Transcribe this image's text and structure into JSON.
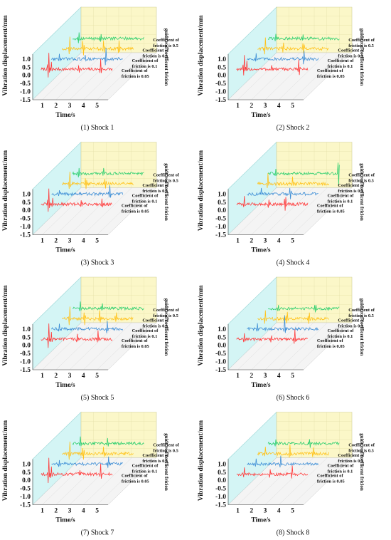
{
  "chart_data": [
    {
      "type": "line",
      "caption": "(1) Shock 1",
      "xlabel": "Time/s",
      "ylabel": "Vibration displacement/mm",
      "zlabel": "guide rod coefficent fricion",
      "xticks": [
        1,
        2,
        3,
        4,
        5
      ],
      "yticks": [
        -1.5,
        -1.0,
        -0.5,
        0.0,
        0.5,
        1.0
      ],
      "xlim": [
        0.3,
        5.8
      ],
      "ylim": [
        -1.5,
        1.3
      ],
      "series_labels": [
        [
          "Coefficient of",
          "friction is 0.05"
        ],
        [
          "Coefficient of",
          "friction is 0.1"
        ],
        [
          "Coefficient of",
          "friction is 0.3"
        ],
        [
          "Coefficient of",
          "friction is 0.5"
        ]
      ],
      "series": [
        {
          "color": "#ff3b3b",
          "peaks": [
            [
              1.0,
              1.1
            ],
            [
              1.2,
              0.4
            ],
            [
              4.8,
              0.55
            ],
            [
              3.2,
              0.3
            ]
          ]
        },
        {
          "color": "#3f8fd6",
          "peaks": [
            [
              4.4,
              0.7
            ],
            [
              1.0,
              0.3
            ],
            [
              2.9,
              0.2
            ]
          ]
        },
        {
          "color": "#ffc21a",
          "peaks": [
            [
              1.0,
              0.9
            ],
            [
              2.0,
              0.6
            ],
            [
              3.5,
              0.5
            ],
            [
              4.6,
              0.6
            ]
          ]
        },
        {
          "color": "#2ecf6f",
          "peaks": [
            [
              0.9,
              0.5
            ],
            [
              2.5,
              0.35
            ]
          ]
        }
      ]
    },
    {
      "type": "line",
      "caption": "(2) Shock 2",
      "xlabel": "Time/s",
      "ylabel": "Vibration displacement/mm",
      "zlabel": "guide rod coefficent fricion",
      "xticks": [
        1,
        2,
        3,
        4,
        5
      ],
      "yticks": [
        -1.5,
        -1.0,
        -0.5,
        0.0,
        0.5,
        1.0
      ],
      "xlim": [
        0.3,
        5.8
      ],
      "ylim": [
        -1.5,
        1.3
      ],
      "series_labels": [
        [
          "Coefficient of",
          "friction is 0.05"
        ],
        [
          "Coefficient of",
          "friction is 0.1"
        ],
        [
          "Coefficient of",
          "friction is 0.3"
        ],
        [
          "Coefficient of",
          "friction is 0.5"
        ]
      ],
      "series": [
        {
          "color": "#ff3b3b",
          "peaks": [
            [
              1.0,
              1.0
            ],
            [
              1.2,
              0.5
            ],
            [
              5.0,
              0.7
            ],
            [
              3.0,
              0.25
            ]
          ]
        },
        {
          "color": "#3f8fd6",
          "peaks": [
            [
              4.6,
              0.6
            ],
            [
              1.1,
              0.3
            ]
          ]
        },
        {
          "color": "#ffc21a",
          "peaks": [
            [
              1.0,
              0.7
            ],
            [
              2.3,
              0.5
            ],
            [
              3.8,
              0.45
            ]
          ]
        },
        {
          "color": "#2ecf6f",
          "peaks": [
            [
              1.0,
              0.4
            ],
            [
              3.0,
              0.3
            ]
          ]
        }
      ]
    },
    {
      "type": "line",
      "caption": "(3) Shock 3",
      "xlabel": "Time/s",
      "ylabel": "Vibration displacement/mm",
      "zlabel": "guide rod coefficent fricion",
      "xticks": [
        1,
        2,
        3,
        4,
        5
      ],
      "yticks": [
        -1.5,
        -1.0,
        -0.5,
        0.0,
        0.5,
        1.0
      ],
      "xlim": [
        0.3,
        5.8
      ],
      "ylim": [
        -1.5,
        1.3
      ],
      "series_labels": [
        [
          "Coefficient of",
          "friction is 0.05"
        ],
        [
          "Coefficient of",
          "friction is 0.1"
        ],
        [
          "Coefficient of",
          "friction is 0.3"
        ],
        [
          "Coefficient of",
          "friction is 0.5"
        ]
      ],
      "series": [
        {
          "color": "#ff3b3b",
          "peaks": [
            [
              1.0,
              0.95
            ],
            [
              1.3,
              0.4
            ],
            [
              3.4,
              0.35
            ],
            [
              4.9,
              0.4
            ]
          ]
        },
        {
          "color": "#3f8fd6",
          "peaks": [
            [
              4.7,
              0.55
            ],
            [
              1.0,
              0.3
            ]
          ]
        },
        {
          "color": "#ffc21a",
          "peaks": [
            [
              1.0,
              0.8
            ],
            [
              2.2,
              0.5
            ],
            [
              3.6,
              0.4
            ]
          ]
        },
        {
          "color": "#2ecf6f",
          "peaks": [
            [
              0.9,
              0.45
            ],
            [
              2.7,
              0.3
            ]
          ]
        }
      ]
    },
    {
      "type": "line",
      "caption": "(4) Shock 4",
      "xlabel": "Time/s",
      "ylabel": "Vibration displacement/mm",
      "zlabel": "guide rod coefficent fricion",
      "xticks": [
        1,
        2,
        3,
        4,
        5
      ],
      "yticks": [
        -1.5,
        -1.0,
        -0.5,
        0.0,
        0.5,
        1.0
      ],
      "xlim": [
        0.3,
        5.8
      ],
      "ylim": [
        -1.5,
        1.3
      ],
      "series_labels": [
        [
          "Coefficient of",
          "friction is 0.05"
        ],
        [
          "Coefficient of",
          "friction is 0.1"
        ],
        [
          "Coefficient of",
          "friction is 0.3"
        ],
        [
          "Coefficient of",
          "friction is 0.5"
        ]
      ],
      "series": [
        {
          "color": "#ff3b3b",
          "peaks": [
            [
              1.0,
              0.5
            ],
            [
              4.0,
              0.7
            ],
            [
              2.8,
              0.3
            ]
          ]
        },
        {
          "color": "#3f8fd6",
          "peaks": [
            [
              1.5,
              0.3
            ],
            [
              3.6,
              0.5
            ]
          ]
        },
        {
          "color": "#ffc21a",
          "peaks": [
            [
              1.2,
              0.6
            ],
            [
              3.0,
              0.45
            ]
          ]
        },
        {
          "color": "#2ecf6f",
          "peaks": [
            [
              5.6,
              1.2
            ],
            [
              1.0,
              0.3
            ]
          ]
        }
      ]
    },
    {
      "type": "line",
      "caption": "(5) Shock 5",
      "xlabel": "Time/s",
      "ylabel": "Vibration displacement/mm",
      "zlabel": "guide rod coefficent fricion",
      "xticks": [
        1,
        2,
        3,
        4,
        5
      ],
      "yticks": [
        -1.5,
        -1.0,
        -0.5,
        0.0,
        0.5,
        1.0
      ],
      "xlim": [
        0.3,
        5.8
      ],
      "ylim": [
        -1.5,
        1.3
      ],
      "series_labels": [
        [
          "Coefficient of",
          "friction is 0.05"
        ],
        [
          "Coefficient of",
          "friction is 0.1"
        ],
        [
          "Coefficient of",
          "friction is 0.3"
        ],
        [
          "Coefficient of",
          "friction is 0.5"
        ]
      ],
      "series": [
        {
          "color": "#ff3b3b",
          "peaks": [
            [
              1.0,
              1.05
            ],
            [
              1.2,
              0.5
            ],
            [
              4.6,
              0.5
            ],
            [
              3.1,
              0.3
            ]
          ]
        },
        {
          "color": "#3f8fd6",
          "peaks": [
            [
              4.5,
              0.6
            ],
            [
              1.0,
              0.3
            ]
          ]
        },
        {
          "color": "#ffc21a",
          "peaks": [
            [
              1.0,
              0.9
            ],
            [
              2.1,
              0.6
            ],
            [
              3.2,
              0.5
            ],
            [
              4.4,
              0.5
            ]
          ]
        },
        {
          "color": "#2ecf6f",
          "peaks": [
            [
              1.0,
              0.5
            ],
            [
              2.6,
              0.3
            ]
          ]
        }
      ]
    },
    {
      "type": "line",
      "caption": "(6) Shock 6",
      "xlabel": "Time/s",
      "ylabel": "Vibration displacement/mm",
      "zlabel": "guide rod coefficent fricion",
      "xticks": [
        1,
        2,
        3,
        4,
        5
      ],
      "yticks": [
        -1.5,
        -1.0,
        -0.5,
        0.0,
        0.5,
        1.0
      ],
      "xlim": [
        0.3,
        5.8
      ],
      "ylim": [
        -1.5,
        1.3
      ],
      "series_labels": [
        [
          "Coefficient of",
          "friction is 0.05"
        ],
        [
          "Coefficient of",
          "friction is 0.1"
        ],
        [
          "Coefficient of",
          "friction is 0.3"
        ],
        [
          "Coefficient of",
          "friction is 0.5"
        ]
      ],
      "series": [
        {
          "color": "#ff3b3b",
          "peaks": [
            [
              1.0,
              0.45
            ],
            [
              4.7,
              0.6
            ],
            [
              3.0,
              0.3
            ]
          ]
        },
        {
          "color": "#3f8fd6",
          "peaks": [
            [
              3.2,
              0.8
            ],
            [
              1.2,
              0.3
            ]
          ]
        },
        {
          "color": "#ffc21a",
          "peaks": [
            [
              1.0,
              0.5
            ],
            [
              2.6,
              0.6
            ],
            [
              4.2,
              0.6
            ]
          ]
        },
        {
          "color": "#2ecf6f",
          "peaks": [
            [
              3.9,
              0.4
            ],
            [
              1.2,
              0.25
            ]
          ]
        }
      ]
    },
    {
      "type": "line",
      "caption": "(7) Shock 7",
      "xlabel": "Time/s",
      "ylabel": "Vibration displacement/mm",
      "zlabel": "guide rod coefficent fricion",
      "xticks": [
        1,
        2,
        3,
        4,
        5
      ],
      "yticks": [
        -1.5,
        -1.0,
        -0.5,
        0.0,
        0.5,
        1.0
      ],
      "xlim": [
        0.3,
        5.8
      ],
      "ylim": [
        -1.5,
        1.3
      ],
      "series_labels": [
        [
          "Coefficient of",
          "friction is 0.05"
        ],
        [
          "Coefficient of",
          "friction is 0.1"
        ],
        [
          "Coefficient of",
          "friction is 0.3"
        ],
        [
          "Coefficient of",
          "friction is 0.5"
        ]
      ],
      "series": [
        {
          "color": "#ff3b3b",
          "peaks": [
            [
              1.0,
              1.0
            ],
            [
              1.2,
              0.4
            ],
            [
              4.8,
              0.65
            ],
            [
              3.3,
              0.3
            ]
          ]
        },
        {
          "color": "#3f8fd6",
          "peaks": [
            [
              4.6,
              0.5
            ],
            [
              1.0,
              0.3
            ]
          ]
        },
        {
          "color": "#ffc21a",
          "peaks": [
            [
              1.0,
              0.8
            ],
            [
              2.0,
              0.5
            ],
            [
              3.5,
              0.45
            ]
          ]
        },
        {
          "color": "#2ecf6f",
          "peaks": [
            [
              1.0,
              0.4
            ],
            [
              3.0,
              0.3
            ]
          ]
        }
      ]
    },
    {
      "type": "line",
      "caption": "(8) Shock 8",
      "xlabel": "Time/s",
      "ylabel": "Vibration displacement/mm",
      "zlabel": "guide rod coefficent fricion",
      "xticks": [
        1,
        2,
        3,
        4,
        5
      ],
      "yticks": [
        -1.5,
        -1.0,
        -0.5,
        0.0,
        0.5,
        1.0
      ],
      "xlim": [
        0.3,
        5.8
      ],
      "ylim": [
        -1.5,
        1.3
      ],
      "series_labels": [
        [
          "Coefficient of",
          "friction is 0.05"
        ],
        [
          "Coefficient of",
          "friction is 0.1"
        ],
        [
          "Coefficient of",
          "friction is 0.3"
        ],
        [
          "Coefficient of",
          "friction is 0.5"
        ]
      ],
      "series": [
        {
          "color": "#ff3b3b",
          "peaks": [
            [
              1.0,
              0.4
            ],
            [
              4.5,
              0.5
            ],
            [
              2.9,
              0.3
            ]
          ]
        },
        {
          "color": "#3f8fd6",
          "peaks": [
            [
              2.9,
              0.6
            ],
            [
              1.1,
              0.3
            ]
          ]
        },
        {
          "color": "#ffc21a",
          "peaks": [
            [
              1.0,
              0.5
            ],
            [
              2.8,
              0.5
            ],
            [
              4.5,
              0.5
            ]
          ]
        },
        {
          "color": "#2ecf6f",
          "peaks": [
            [
              3.5,
              0.35
            ],
            [
              1.0,
              0.25
            ]
          ]
        }
      ]
    }
  ]
}
